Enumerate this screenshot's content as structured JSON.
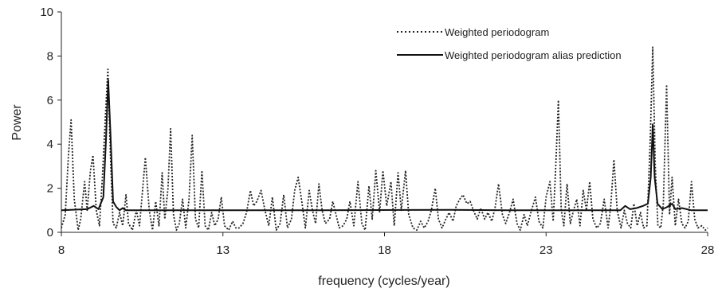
{
  "chart_data": {
    "type": "line",
    "xlabel": "frequency (cycles/year)",
    "ylabel": "Power",
    "xlim": [
      8,
      28
    ],
    "ylim": [
      0,
      10
    ],
    "x_ticks": [
      8,
      13,
      18,
      23,
      28
    ],
    "y_ticks": [
      0,
      2,
      4,
      6,
      8,
      10
    ],
    "grid": false,
    "legend_position": "top-right",
    "series": [
      {
        "name": "Weighted periodogram",
        "style": "dotted",
        "color": "#222222",
        "points": [
          [
            8.0,
            0.2
          ],
          [
            8.12,
            0.8
          ],
          [
            8.22,
            3.5
          ],
          [
            8.3,
            5.1
          ],
          [
            8.4,
            1.5
          ],
          [
            8.52,
            0.1
          ],
          [
            8.6,
            0.6
          ],
          [
            8.72,
            2.3
          ],
          [
            8.8,
            1.0
          ],
          [
            8.9,
            2.8
          ],
          [
            8.98,
            3.5
          ],
          [
            9.08,
            1.0
          ],
          [
            9.18,
            0.3
          ],
          [
            9.27,
            2.5
          ],
          [
            9.37,
            5.5
          ],
          [
            9.44,
            7.4
          ],
          [
            9.52,
            3.5
          ],
          [
            9.6,
            0.4
          ],
          [
            9.7,
            0.2
          ],
          [
            9.8,
            0.9
          ],
          [
            9.9,
            0.3
          ],
          [
            10.0,
            1.7
          ],
          [
            10.08,
            0.4
          ],
          [
            10.2,
            0.1
          ],
          [
            10.32,
            1.0
          ],
          [
            10.42,
            0.3
          ],
          [
            10.5,
            1.7
          ],
          [
            10.6,
            3.4
          ],
          [
            10.72,
            1.0
          ],
          [
            10.82,
            0.1
          ],
          [
            10.92,
            1.4
          ],
          [
            11.02,
            0.3
          ],
          [
            11.12,
            2.7
          ],
          [
            11.2,
            0.6
          ],
          [
            11.3,
            2.0
          ],
          [
            11.38,
            4.7
          ],
          [
            11.47,
            0.8
          ],
          [
            11.56,
            0.1
          ],
          [
            11.65,
            0.4
          ],
          [
            11.75,
            1.5
          ],
          [
            11.85,
            0.2
          ],
          [
            11.95,
            1.5
          ],
          [
            12.05,
            4.4
          ],
          [
            12.15,
            0.6
          ],
          [
            12.25,
            0.2
          ],
          [
            12.35,
            2.8
          ],
          [
            12.45,
            0.3
          ],
          [
            12.55,
            0.1
          ],
          [
            12.65,
            0.9
          ],
          [
            12.75,
            0.3
          ],
          [
            12.85,
            0.6
          ],
          [
            12.95,
            1.6
          ],
          [
            13.05,
            0.3
          ],
          [
            13.18,
            0.1
          ],
          [
            13.3,
            0.5
          ],
          [
            13.4,
            0.2
          ],
          [
            13.5,
            0.2
          ],
          [
            13.62,
            0.4
          ],
          [
            13.73,
            0.9
          ],
          [
            13.85,
            1.9
          ],
          [
            13.95,
            1.2
          ],
          [
            14.05,
            1.4
          ],
          [
            14.18,
            1.9
          ],
          [
            14.3,
            1.0
          ],
          [
            14.42,
            0.3
          ],
          [
            14.53,
            1.6
          ],
          [
            14.65,
            0.1
          ],
          [
            14.77,
            0.4
          ],
          [
            14.88,
            1.7
          ],
          [
            15.0,
            0.2
          ],
          [
            15.12,
            0.6
          ],
          [
            15.22,
            1.9
          ],
          [
            15.33,
            2.5
          ],
          [
            15.45,
            1.3
          ],
          [
            15.55,
            0.2
          ],
          [
            15.67,
            1.9
          ],
          [
            15.77,
            1.0
          ],
          [
            15.87,
            0.4
          ],
          [
            15.97,
            2.2
          ],
          [
            16.07,
            1.0
          ],
          [
            16.17,
            0.4
          ],
          [
            16.3,
            0.6
          ],
          [
            16.4,
            1.4
          ],
          [
            16.5,
            0.8
          ],
          [
            16.6,
            0.2
          ],
          [
            16.72,
            0.3
          ],
          [
            16.83,
            0.6
          ],
          [
            16.93,
            1.4
          ],
          [
            17.05,
            0.3
          ],
          [
            17.18,
            2.3
          ],
          [
            17.3,
            0.4
          ],
          [
            17.4,
            0.1
          ],
          [
            17.52,
            2.1
          ],
          [
            17.62,
            0.6
          ],
          [
            17.73,
            2.8
          ],
          [
            17.85,
            0.9
          ],
          [
            17.95,
            2.8
          ],
          [
            18.07,
            1.2
          ],
          [
            18.2,
            2.3
          ],
          [
            18.3,
            0.3
          ],
          [
            18.42,
            2.7
          ],
          [
            18.52,
            1.0
          ],
          [
            18.65,
            2.8
          ],
          [
            18.75,
            0.8
          ],
          [
            18.88,
            0.2
          ],
          [
            19.0,
            0.1
          ],
          [
            19.12,
            0.5
          ],
          [
            19.23,
            0.2
          ],
          [
            19.35,
            0.5
          ],
          [
            19.45,
            1.0
          ],
          [
            19.57,
            2.0
          ],
          [
            19.67,
            0.6
          ],
          [
            19.78,
            0.2
          ],
          [
            19.9,
            0.6
          ],
          [
            20.0,
            0.9
          ],
          [
            20.12,
            0.5
          ],
          [
            20.22,
            1.2
          ],
          [
            20.33,
            1.5
          ],
          [
            20.43,
            1.7
          ],
          [
            20.55,
            1.3
          ],
          [
            20.65,
            1.4
          ],
          [
            20.75,
            1.0
          ],
          [
            20.87,
            0.6
          ],
          [
            20.98,
            1.1
          ],
          [
            21.1,
            0.6
          ],
          [
            21.2,
            0.9
          ],
          [
            21.32,
            0.5
          ],
          [
            21.42,
            1.1
          ],
          [
            21.53,
            2.2
          ],
          [
            21.65,
            0.8
          ],
          [
            21.75,
            0.4
          ],
          [
            21.87,
            0.9
          ],
          [
            21.98,
            1.5
          ],
          [
            22.1,
            0.4
          ],
          [
            22.2,
            0.1
          ],
          [
            22.32,
            0.8
          ],
          [
            22.42,
            0.3
          ],
          [
            22.55,
            1.0
          ],
          [
            22.67,
            1.6
          ],
          [
            22.78,
            0.5
          ],
          [
            22.9,
            0.2
          ],
          [
            23.0,
            1.6
          ],
          [
            23.12,
            2.3
          ],
          [
            23.22,
            0.5
          ],
          [
            23.3,
            3.0
          ],
          [
            23.38,
            6.0
          ],
          [
            23.47,
            1.0
          ],
          [
            23.55,
            0.3
          ],
          [
            23.65,
            2.2
          ],
          [
            23.75,
            0.4
          ],
          [
            23.85,
            1.0
          ],
          [
            23.95,
            1.5
          ],
          [
            24.05,
            0.3
          ],
          [
            24.15,
            1.9
          ],
          [
            24.25,
            1.0
          ],
          [
            24.35,
            2.3
          ],
          [
            24.45,
            0.6
          ],
          [
            24.57,
            0.2
          ],
          [
            24.68,
            0.4
          ],
          [
            24.8,
            1.5
          ],
          [
            24.92,
            0.2
          ],
          [
            25.0,
            1.2
          ],
          [
            25.1,
            3.3
          ],
          [
            25.2,
            1.0
          ],
          [
            25.32,
            0.2
          ],
          [
            25.42,
            1.0
          ],
          [
            25.52,
            0.4
          ],
          [
            25.62,
            0.2
          ],
          [
            25.72,
            1.3
          ],
          [
            25.82,
            0.3
          ],
          [
            25.92,
            0.9
          ],
          [
            26.02,
            0.2
          ],
          [
            26.12,
            0.3
          ],
          [
            26.22,
            4.0
          ],
          [
            26.3,
            8.4
          ],
          [
            26.38,
            3.0
          ],
          [
            26.46,
            0.3
          ],
          [
            26.55,
            0.2
          ],
          [
            26.63,
            1.3
          ],
          [
            26.73,
            6.7
          ],
          [
            26.82,
            0.8
          ],
          [
            26.9,
            2.5
          ],
          [
            27.0,
            0.3
          ],
          [
            27.1,
            1.5
          ],
          [
            27.2,
            0.4
          ],
          [
            27.3,
            0.2
          ],
          [
            27.4,
            0.5
          ],
          [
            27.5,
            2.3
          ],
          [
            27.6,
            0.6
          ],
          [
            27.7,
            0.2
          ],
          [
            27.82,
            0.3
          ],
          [
            27.93,
            0.1
          ],
          [
            28.0,
            0.2
          ]
        ]
      },
      {
        "name": "Weighted periodogram alias prediction",
        "style": "solid",
        "color": "#111111",
        "points": [
          [
            8.0,
            1.0
          ],
          [
            8.8,
            1.05
          ],
          [
            9.0,
            1.2
          ],
          [
            9.15,
            1.05
          ],
          [
            9.3,
            1.6
          ],
          [
            9.38,
            4.2
          ],
          [
            9.45,
            6.9
          ],
          [
            9.52,
            4.5
          ],
          [
            9.6,
            1.4
          ],
          [
            9.7,
            1.15
          ],
          [
            9.8,
            1.0
          ],
          [
            9.9,
            1.1
          ],
          [
            10.0,
            1.0
          ],
          [
            12.0,
            1.0
          ],
          [
            16.0,
            1.0
          ],
          [
            20.0,
            1.02
          ],
          [
            22.0,
            1.0
          ],
          [
            24.0,
            1.0
          ],
          [
            25.3,
            1.0
          ],
          [
            25.45,
            1.2
          ],
          [
            25.6,
            1.05
          ],
          [
            25.8,
            1.1
          ],
          [
            26.0,
            1.2
          ],
          [
            26.15,
            1.3
          ],
          [
            26.24,
            2.5
          ],
          [
            26.3,
            4.9
          ],
          [
            26.36,
            2.5
          ],
          [
            26.45,
            1.3
          ],
          [
            26.6,
            1.05
          ],
          [
            26.75,
            1.15
          ],
          [
            26.9,
            1.3
          ],
          [
            27.0,
            1.05
          ],
          [
            27.2,
            1.1
          ],
          [
            27.5,
            1.0
          ],
          [
            28.0,
            1.0
          ]
        ]
      }
    ]
  }
}
